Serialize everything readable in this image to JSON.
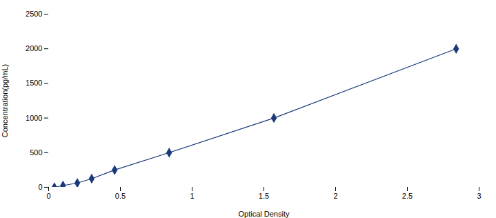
{
  "chart_data": {
    "type": "line",
    "x": [
      0.04,
      0.1,
      0.2,
      0.3,
      0.46,
      0.84,
      1.57,
      2.84
    ],
    "values": [
      0,
      25,
      62,
      125,
      250,
      500,
      1000,
      2000
    ],
    "color": "#1A3A7A",
    "marker": "diamond",
    "line_style": "solid",
    "xlabel": "Optical Density",
    "ylabel": "Concentration(pg/mL)",
    "xlim": [
      0,
      3.0
    ],
    "ylim": [
      0,
      2500
    ],
    "xticks": [
      0,
      0.5,
      1,
      1.5,
      2,
      2.5,
      3
    ],
    "yticks": [
      0,
      500,
      1000,
      1500,
      2000,
      2500
    ],
    "grid": false
  }
}
